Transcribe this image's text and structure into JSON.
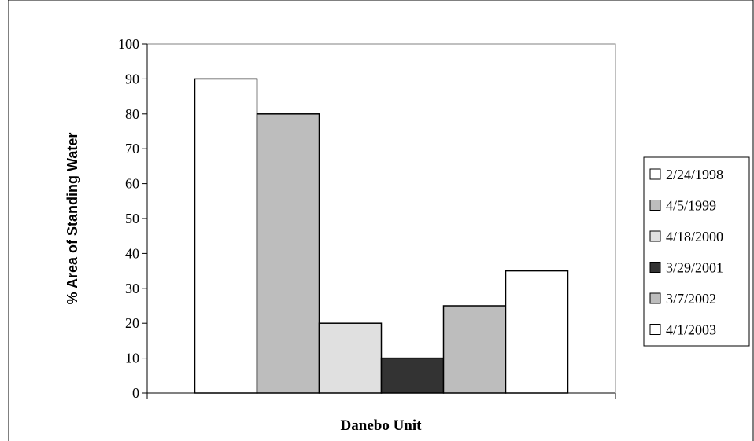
{
  "chart_data": {
    "type": "bar",
    "xlabel": "Danebo Unit",
    "ylabel": "% Area of Standing Water",
    "ylim": [
      0,
      100
    ],
    "yticks": [
      0,
      10,
      20,
      30,
      40,
      50,
      60,
      70,
      80,
      90,
      100
    ],
    "categories": [
      "Danebo Unit"
    ],
    "series": [
      {
        "name": "2/24/1998",
        "values": [
          90
        ],
        "color": "#ffffff"
      },
      {
        "name": "4/5/1999",
        "values": [
          80
        ],
        "color": "#bdbdbd"
      },
      {
        "name": "4/18/2000",
        "values": [
          20
        ],
        "color": "#e0e0e0"
      },
      {
        "name": "3/29/2001",
        "values": [
          10
        ],
        "color": "#333333"
      },
      {
        "name": "3/7/2002",
        "values": [
          25
        ],
        "color": "#bdbdbd"
      },
      {
        "name": "4/1/2003",
        "values": [
          35
        ],
        "color": "#ffffff"
      }
    ],
    "legend_position": "right",
    "grid": false
  }
}
